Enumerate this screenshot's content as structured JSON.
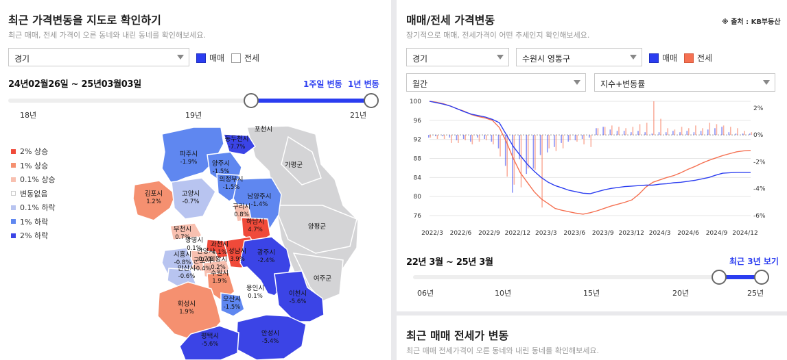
{
  "left": {
    "title": "최근 가격변동을 지도로 확인하기",
    "subtitle": "최근 매매, 전세 가격이 오른 동네와 내린 동네를 확인해보세요.",
    "region_select": "경기",
    "check_sale": "매매",
    "check_jeonse": "전세",
    "range_text": "24년02월26일 ~ 25년03월03일",
    "link_week": "1주일 변동",
    "link_year": "1년 변동",
    "ticks": [
      "18년",
      "19년",
      "21년"
    ],
    "legend": [
      {
        "label": "2% 상승",
        "color": "#f04a3a"
      },
      {
        "label": "1% 상승",
        "color": "#f59070"
      },
      {
        "label": "0.1% 상승",
        "color": "#f8c0b0"
      },
      {
        "label": "변동없음",
        "color": "#ffffff"
      },
      {
        "label": "0.1% 하락",
        "color": "#b8c4f0"
      },
      {
        "label": "1% 하락",
        "color": "#5f87f0"
      },
      {
        "label": "2% 하락",
        "color": "#3b44e6"
      }
    ],
    "map_labels": [
      {
        "name": "포천시",
        "value": ""
      },
      {
        "name": "동두천시",
        "value": "-7.7%"
      },
      {
        "name": "파주시",
        "value": "-1.9%"
      },
      {
        "name": "양주시",
        "value": "-1.5%"
      },
      {
        "name": "가평군",
        "value": ""
      },
      {
        "name": "의정부시",
        "value": "-1.5%"
      },
      {
        "name": "김포시",
        "value": "1.2%"
      },
      {
        "name": "고양시",
        "value": "-0.7%"
      },
      {
        "name": "남양주시",
        "value": "-1.4%"
      },
      {
        "name": "구리시",
        "value": "0.8%"
      },
      {
        "name": "양평군",
        "value": ""
      },
      {
        "name": "하남시",
        "value": "4.7%"
      },
      {
        "name": "부천시",
        "value": "0.7%"
      },
      {
        "name": "광명시",
        "value": "0.1%"
      },
      {
        "name": "과천시",
        "value": "4.1%"
      },
      {
        "name": "성남시",
        "value": "3.9%"
      },
      {
        "name": "안양시",
        "value": "0.7%"
      },
      {
        "name": "광주시",
        "value": "-2.4%"
      },
      {
        "name": "시흥시",
        "value": "-0.8%"
      },
      {
        "name": "군포시",
        "value": "-0.4%"
      },
      {
        "name": "의왕시",
        "value": "0.2%"
      },
      {
        "name": "안산시",
        "value": "-0.6%"
      },
      {
        "name": "수원시",
        "value": "1.9%"
      },
      {
        "name": "여주군",
        "value": ""
      },
      {
        "name": "용인시",
        "value": "0.1%"
      },
      {
        "name": "이천시",
        "value": "-5.6%"
      },
      {
        "name": "오산시",
        "value": "-1.5%"
      },
      {
        "name": "화성시",
        "value": "1.9%"
      },
      {
        "name": "안성시",
        "value": "-5.4%"
      },
      {
        "name": "평택시",
        "value": "-5.6%"
      }
    ]
  },
  "right": {
    "title": "매매/전세 가격변동",
    "source": "※ 출처 : KB부동산",
    "subtitle": "장기적으로 매매, 전세가격이 어떤 추세인지 확인해보세요.",
    "region_select": "경기",
    "city_select": "수원시 영통구",
    "check_sale": "매매",
    "check_jeonse": "전세",
    "period_select": "월간",
    "type_select": "지수+변동률",
    "range_text": "22년 3월 ~ 25년 3월",
    "link_recent": "최근 3년 보기",
    "ticks": [
      "06년",
      "10년",
      "15년",
      "20년",
      "25년"
    ],
    "colors": {
      "sale": "#2b3df0",
      "jeonse": "#f57152"
    }
  },
  "bottom": {
    "title": "최근 매매 전세가 변동",
    "subtitle": "최근 매매 전세가격이 오른 동네와 내린 동네를 확인해보세요."
  },
  "chart_data": {
    "type": "line",
    "title": "매매/전세 가격변동",
    "x_labels": [
      "2022/3",
      "2022/6",
      "2022/9",
      "2022/12",
      "2023/3",
      "2023/6",
      "2023/9",
      "2023/12",
      "2024/3",
      "2024/6",
      "2024/9",
      "2024/12"
    ],
    "ylim_left": [
      76,
      100
    ],
    "yticks_left": [
      100,
      96,
      92,
      88,
      84,
      80,
      76
    ],
    "ylim_right": [
      -6,
      2.5
    ],
    "yticks_right": [
      "2%",
      "0%",
      "-2%",
      "-4%",
      "-6%"
    ],
    "series": [
      {
        "name": "매매 지수",
        "axis": "left",
        "values": [
          100,
          99.7,
          99.4,
          99,
          98.4,
          97.8,
          97.3,
          97,
          96.7,
          96.2,
          95.5,
          93,
          90.5,
          88.6,
          86.8,
          85.3,
          84,
          83,
          82.3,
          81.8,
          81.3,
          81,
          80.7,
          80.6,
          81,
          81.4,
          81.7,
          81.9,
          82.1,
          82.2,
          82.3,
          82.4,
          82.4,
          82.6,
          82.7,
          82.9,
          83,
          83.2,
          83.4,
          83.7,
          84,
          84.5,
          84.9,
          85,
          85.1,
          85.1,
          85.1
        ]
      },
      {
        "name": "전세 지수",
        "axis": "left",
        "values": [
          100,
          99.8,
          99.5,
          99,
          98.4,
          97.9,
          97.2,
          96.8,
          96.5,
          96,
          94.5,
          91.5,
          88,
          85,
          83,
          81,
          79.5,
          78.5,
          77.5,
          77.1,
          76.8,
          76.5,
          76.3,
          76.6,
          77,
          77.5,
          78,
          78.4,
          78.8,
          79.3,
          80.5,
          82,
          83,
          83.5,
          84,
          84.4,
          85,
          85.7,
          86.3,
          87,
          87.6,
          88.1,
          88.6,
          89,
          89.4,
          89.6,
          89.7
        ]
      },
      {
        "name": "매매 변동률(%)",
        "axis": "right",
        "values": [
          -0.2,
          -0.1,
          -0.1,
          -0.2,
          -0.4,
          -0.3,
          -0.5,
          -0.2,
          -0.3,
          -0.5,
          -1.0,
          -2.3,
          -4.3,
          -1.8,
          -2.9,
          -2.5,
          -1.5,
          -1.3,
          -0.9,
          -0.6,
          -0.5,
          -0.4,
          -0.3,
          -0.2,
          0.5,
          0.6,
          0.4,
          0.3,
          0.3,
          0.2,
          0.3,
          0.2,
          0.1,
          0.2,
          0.2,
          0.3,
          0.2,
          0.3,
          0.2,
          0.3,
          0.4,
          0.5,
          0.6,
          0.2,
          0.1,
          0.1,
          0.1
        ]
      },
      {
        "name": "전세 변동률(%)",
        "axis": "right",
        "values": [
          -0.2,
          -0.3,
          -0.3,
          -0.6,
          -0.6,
          -0.4,
          -0.7,
          -0.5,
          -0.4,
          -0.7,
          -1.6,
          -3.1,
          -3.7,
          -3.9,
          -2.5,
          -2.6,
          -5.4,
          -1.0,
          -1.2,
          -1.0,
          -0.4,
          -0.5,
          -0.7,
          -0.9,
          0.5,
          0.6,
          0.7,
          0.6,
          0.5,
          0.6,
          0.8,
          0.9,
          2.5,
          1.2,
          0.5,
          0.4,
          0.6,
          0.5,
          0.7,
          0.5,
          0.9,
          0.8,
          0.7,
          0.6,
          0.5,
          0.3,
          0.2
        ]
      }
    ]
  }
}
